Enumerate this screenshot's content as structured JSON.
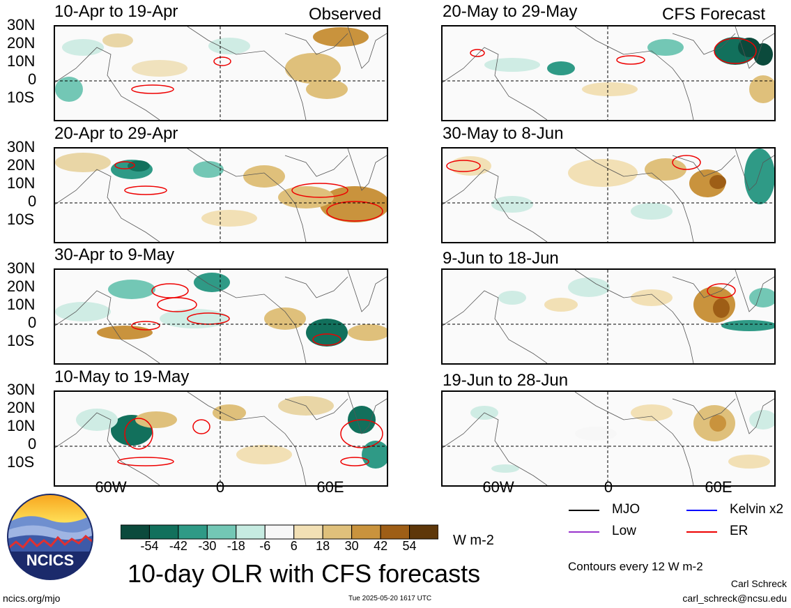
{
  "panels_left": [
    {
      "title": "10-Apr to 19-Apr",
      "tag": "Observed"
    },
    {
      "title": "20-Apr to 29-Apr",
      "tag": ""
    },
    {
      "title": "30-Apr to 9-May",
      "tag": ""
    },
    {
      "title": "10-May to 19-May",
      "tag": ""
    }
  ],
  "panels_right": [
    {
      "title": "20-May to 29-May",
      "tag": "CFS Forecast"
    },
    {
      "title": "30-May to 8-Jun",
      "tag": ""
    },
    {
      "title": "9-Jun to 18-Jun",
      "tag": ""
    },
    {
      "title": "19-Jun to 28-Jun",
      "tag": ""
    }
  ],
  "lat_labels": [
    "30N",
    "20N",
    "10N",
    "0",
    "10S"
  ],
  "lon_labels": [
    "60W",
    "0",
    "60E"
  ],
  "colorbar": {
    "labels": [
      "-54",
      "-42",
      "-30",
      "-18",
      "-6",
      "6",
      "18",
      "30",
      "42",
      "54"
    ],
    "colors": [
      "#0b4a3c",
      "#12705c",
      "#2f9a86",
      "#73c7b5",
      "#c6ebe1",
      "#f7f7f7",
      "#f2e0b5",
      "#dfc07b",
      "#c9933d",
      "#9e5e16",
      "#5e3709"
    ],
    "units": "W m-2"
  },
  "title": "10-day OLR with CFS forecasts",
  "legend": [
    {
      "label": "MJO",
      "color": "#000000"
    },
    {
      "label": "Kelvin x2",
      "color": "#0000ff"
    },
    {
      "label": "Low",
      "color": "#9933cc"
    },
    {
      "label": "ER",
      "color": "#ee0000"
    }
  ],
  "contour_note": "Contours every 12 W m-2",
  "author": "Carl Schreck",
  "email": "carl_schreck@ncsu.edu",
  "site": "ncics.org/mjo",
  "timestamp": "Tue 2025-05-20 1617 UTC",
  "logo_text": "NCICS"
}
